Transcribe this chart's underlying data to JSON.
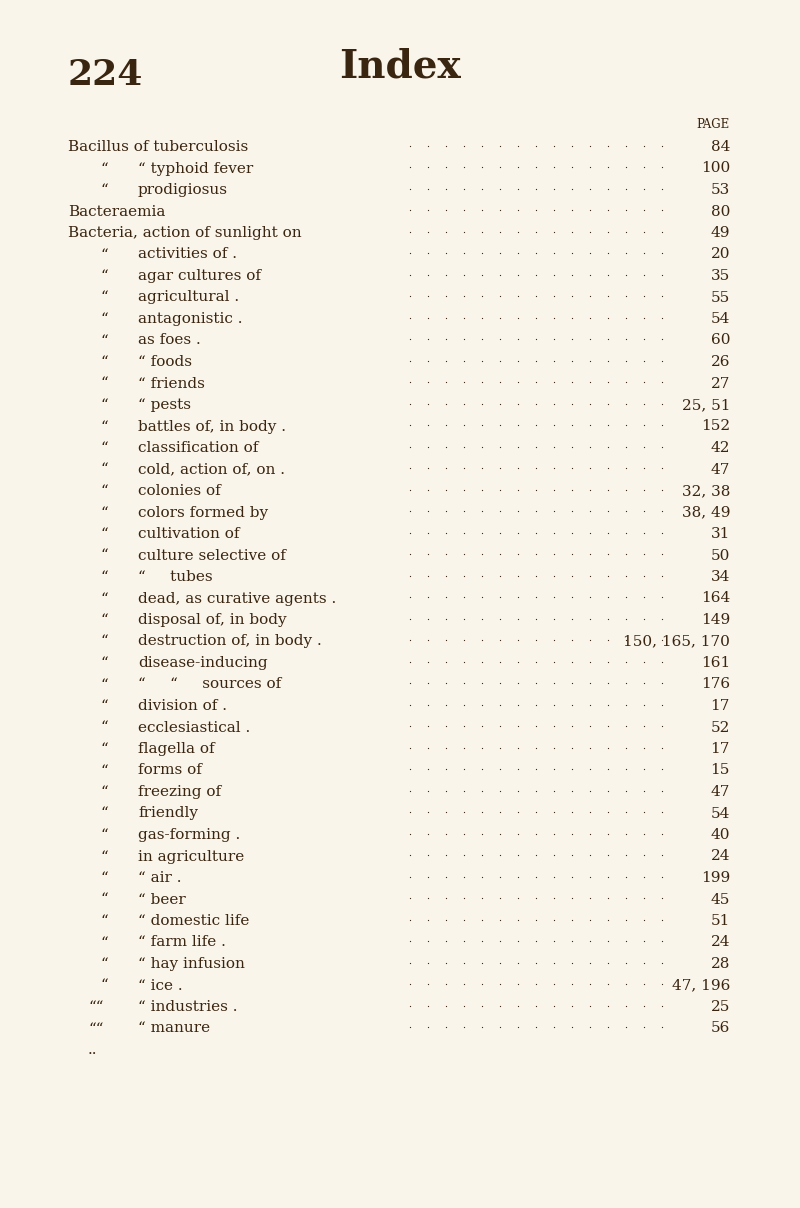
{
  "page_number": "224",
  "title": "Index",
  "bg_color": "#faf5ea",
  "text_color": "#3a2510",
  "page_label": "PAGE",
  "entries": [
    {
      "indent": 0,
      "text": "Bacillus of tuberculosis",
      "page": "84"
    },
    {
      "indent": 1,
      "text": "“ typhoid fever",
      "page": "100"
    },
    {
      "indent": 1,
      "text": "prodigiosus",
      "page": "53"
    },
    {
      "indent": 0,
      "text": "Bacteraemia",
      "page": "80"
    },
    {
      "indent": 0,
      "text": "Bacteria, action of sunlight on",
      "page": "49"
    },
    {
      "indent": 1,
      "text": "activities of .",
      "page": "20"
    },
    {
      "indent": 1,
      "text": "agar cultures of",
      "page": "35"
    },
    {
      "indent": 1,
      "text": "agricultural .",
      "page": "55"
    },
    {
      "indent": 1,
      "text": "antagonistic .",
      "page": "54"
    },
    {
      "indent": 1,
      "text": "as foes .",
      "page": "60"
    },
    {
      "indent": 1,
      "text": "“ foods",
      "page": "26"
    },
    {
      "indent": 1,
      "text": "“ friends",
      "page": "27"
    },
    {
      "indent": 1,
      "text": "“ pests",
      "page": "25, 51"
    },
    {
      "indent": 1,
      "text": "battles of, in body .",
      "page": "152"
    },
    {
      "indent": 1,
      "text": "classification of",
      "page": "42"
    },
    {
      "indent": 1,
      "text": "cold, action of, on .",
      "page": "47"
    },
    {
      "indent": 1,
      "text": "colonies of",
      "page": "32, 38"
    },
    {
      "indent": 1,
      "text": "colors formed by",
      "page": "38, 49"
    },
    {
      "indent": 1,
      "text": "cultivation of",
      "page": "31"
    },
    {
      "indent": 1,
      "text": "culture selective of",
      "page": "50"
    },
    {
      "indent": 1,
      "text": "“     tubes",
      "page": "34"
    },
    {
      "indent": 1,
      "text": "dead, as curative agents .",
      "page": "164"
    },
    {
      "indent": 1,
      "text": "disposal of, in body",
      "page": "149"
    },
    {
      "indent": 1,
      "text": "destruction of, in body .",
      "page": "150, 165, 170"
    },
    {
      "indent": 1,
      "text": "disease-inducing",
      "page": "161"
    },
    {
      "indent": 1,
      "text": "“     “     sources of",
      "page": "176"
    },
    {
      "indent": 1,
      "text": "division of .",
      "page": "17"
    },
    {
      "indent": 1,
      "text": "ecclesiastical .",
      "page": "52"
    },
    {
      "indent": 1,
      "text": "flagella of",
      "page": "17"
    },
    {
      "indent": 1,
      "text": "forms of",
      "page": "15"
    },
    {
      "indent": 1,
      "text": "freezing of",
      "page": "47"
    },
    {
      "indent": 1,
      "text": "friendly",
      "page": "54"
    },
    {
      "indent": 1,
      "text": "gas-forming .",
      "page": "40"
    },
    {
      "indent": 1,
      "text": "in agriculture",
      "page": "24"
    },
    {
      "indent": 1,
      "text": "“ air .",
      "page": "199"
    },
    {
      "indent": 1,
      "text": "“ beer",
      "page": "45"
    },
    {
      "indent": 1,
      "text": "“ domestic life",
      "page": "51"
    },
    {
      "indent": 1,
      "text": "“ farm life .",
      "page": "24"
    },
    {
      "indent": 1,
      "text": "“ hay infusion",
      "page": "28"
    },
    {
      "indent": 1,
      "text": "“ ice .",
      "page": "47, 196"
    },
    {
      "indent": 2,
      "text": "“ industries .",
      "page": "25"
    },
    {
      "indent": 2,
      "text": "“ manure",
      "page": "56"
    }
  ],
  "footer_dots": ".."
}
